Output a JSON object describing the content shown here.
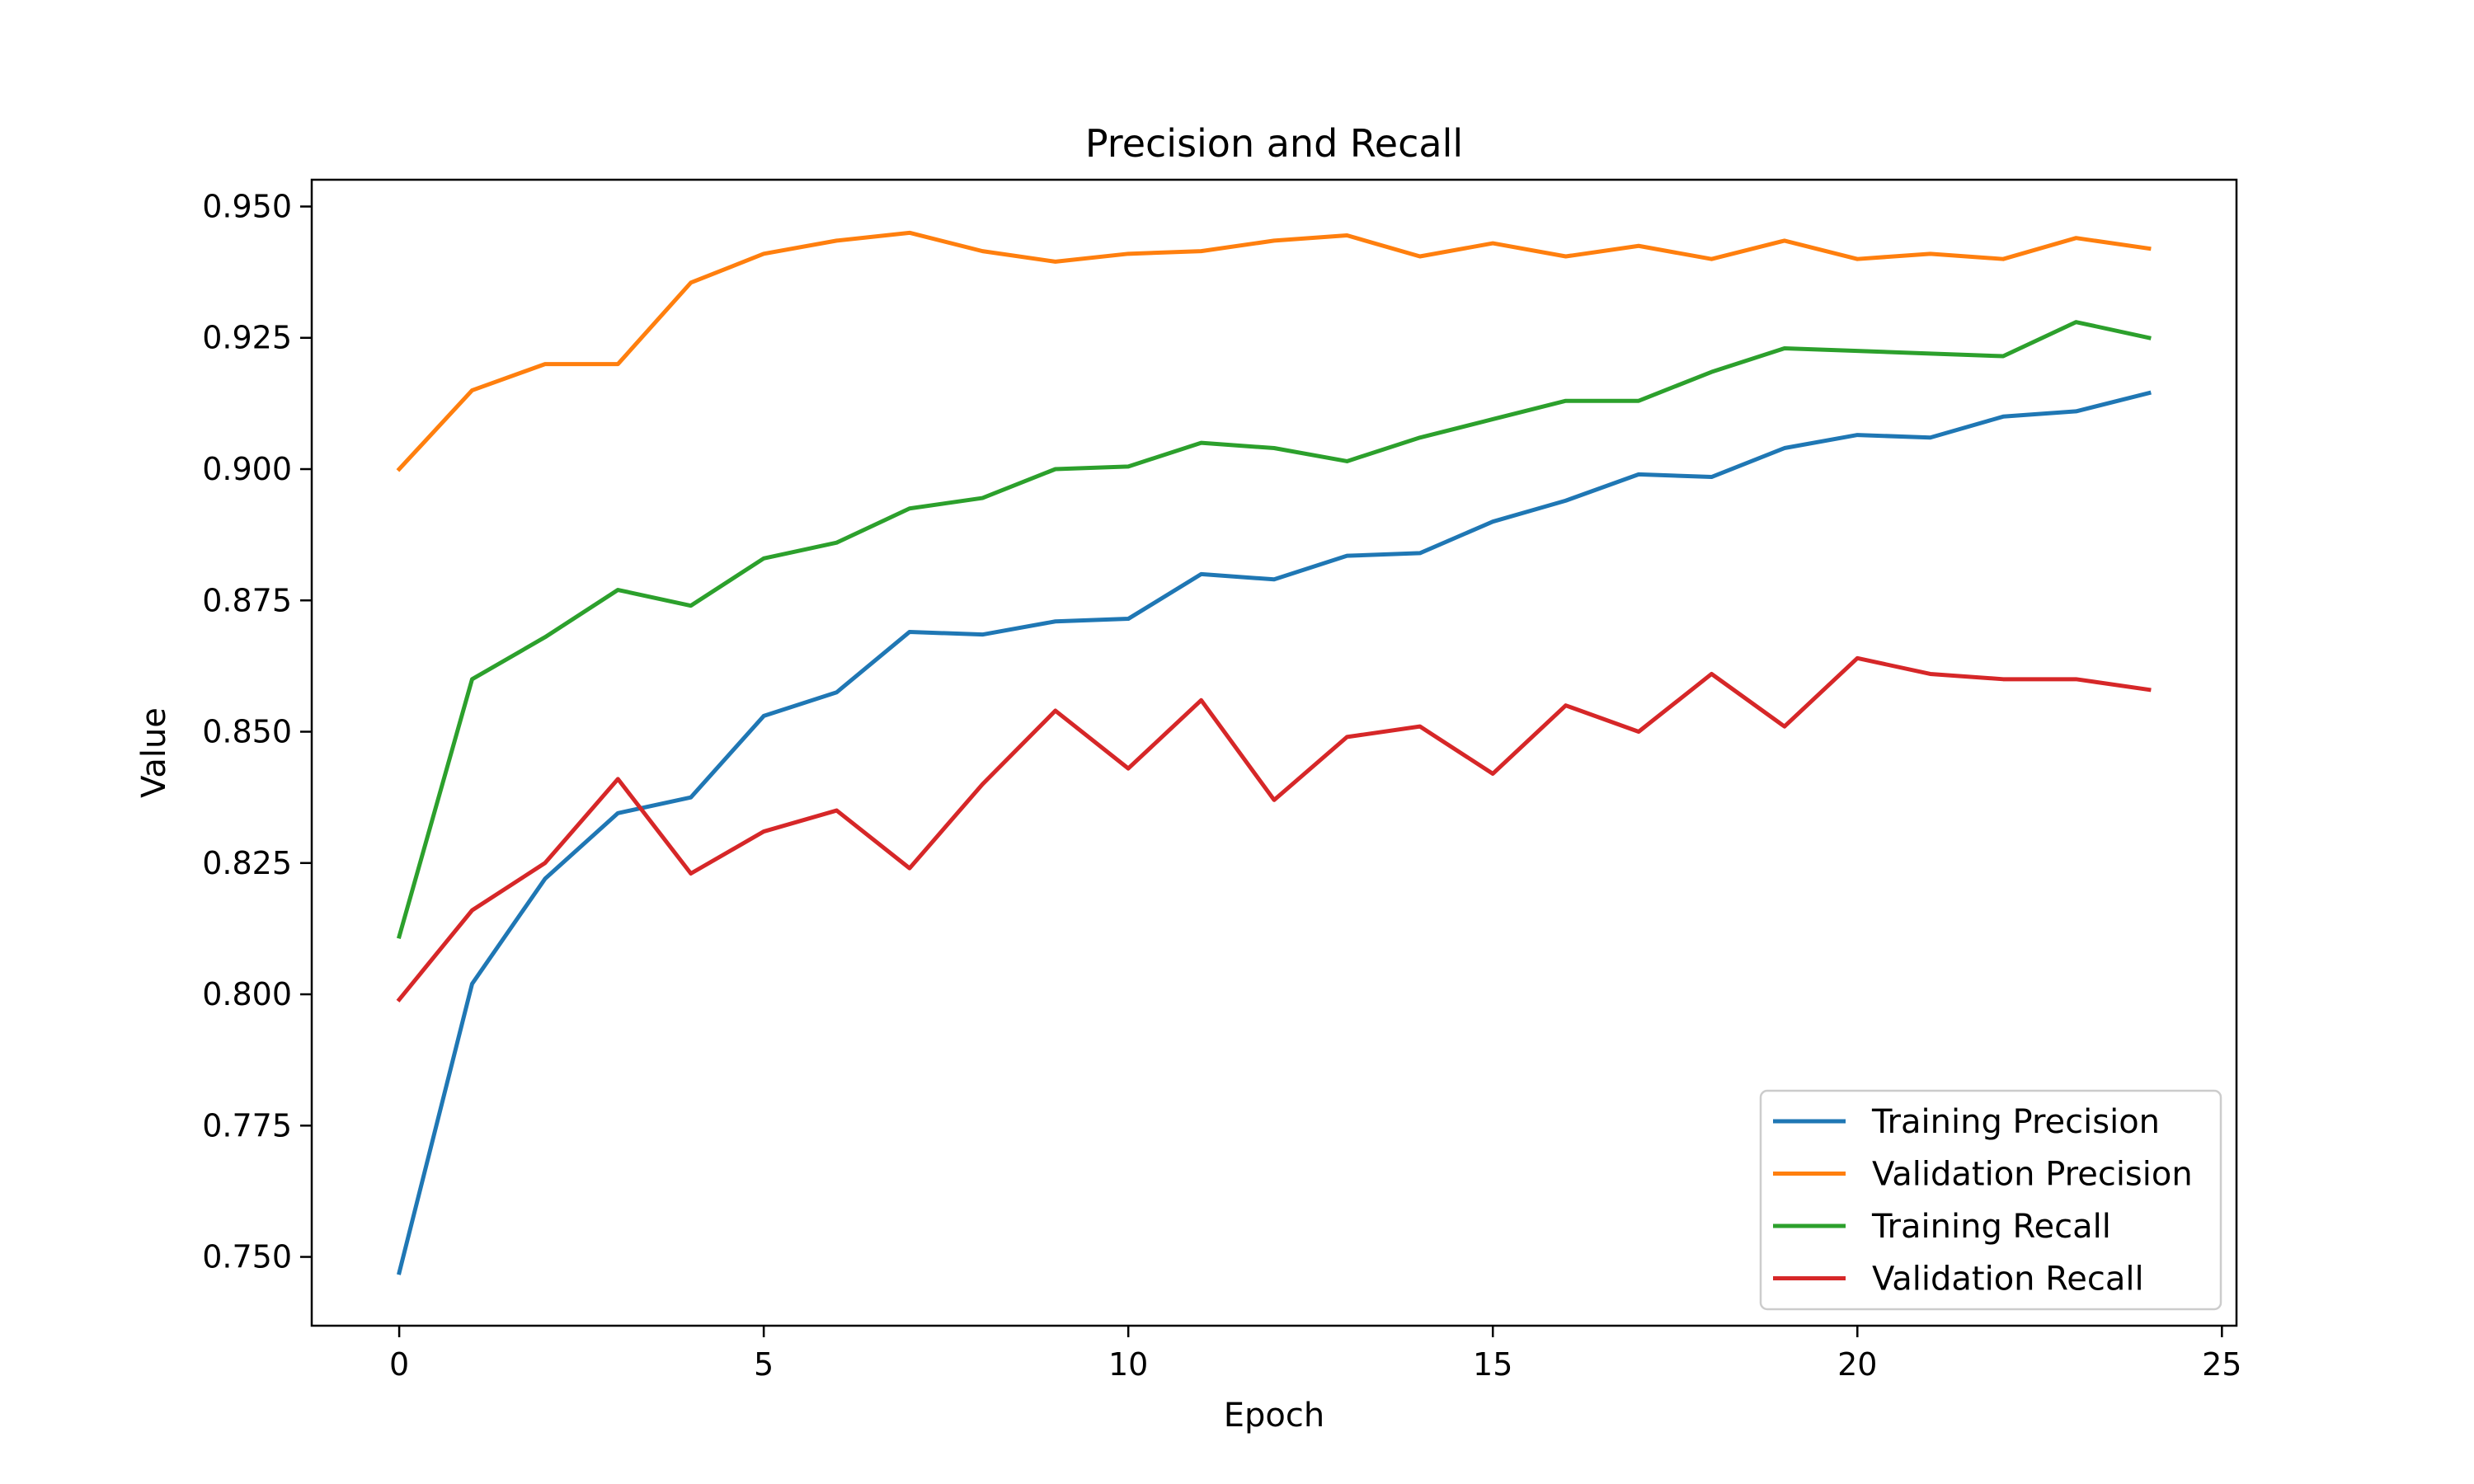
{
  "chart_data": {
    "type": "line",
    "title": "Precision and Recall",
    "xlabel": "Epoch",
    "ylabel": "Value",
    "xlim": [
      -1.2,
      25.2
    ],
    "ylim": [
      0.7369,
      0.9551
    ],
    "xticks": [
      0,
      5,
      10,
      15,
      20,
      25
    ],
    "xtick_labels": [
      "0",
      "5",
      "10",
      "15",
      "20",
      "25"
    ],
    "yticks": [
      0.75,
      0.775,
      0.8,
      0.825,
      0.85,
      0.875,
      0.9,
      0.925,
      0.95
    ],
    "ytick_labels": [
      "0.750",
      "0.775",
      "0.800",
      "0.825",
      "0.850",
      "0.875",
      "0.900",
      "0.925",
      "0.950"
    ],
    "grid": false,
    "legend_position": "lower-right",
    "x": [
      0,
      1,
      2,
      3,
      4,
      5,
      6,
      7,
      8,
      9,
      10,
      11,
      12,
      13,
      14,
      15,
      16,
      17,
      18,
      19,
      20,
      21,
      22,
      23,
      24
    ],
    "series": [
      {
        "name": "Training Precision",
        "color": "#1f77b4",
        "values": [
          0.747,
          0.802,
          0.822,
          0.8345,
          0.8375,
          0.853,
          0.8575,
          0.869,
          0.8685,
          0.871,
          0.8715,
          0.88,
          0.879,
          0.8835,
          0.884,
          0.89,
          0.894,
          0.899,
          0.8985,
          0.904,
          0.9065,
          0.906,
          0.91,
          0.911,
          0.9145
        ]
      },
      {
        "name": "Validation Precision",
        "color": "#ff7f0e",
        "values": [
          0.9,
          0.915,
          0.92,
          0.92,
          0.9355,
          0.941,
          0.9435,
          0.945,
          0.9415,
          0.9395,
          0.941,
          0.9415,
          0.9435,
          0.9445,
          0.9405,
          0.943,
          0.9405,
          0.9425,
          0.94,
          0.9435,
          0.94,
          0.941,
          0.94,
          0.944,
          0.942
        ]
      },
      {
        "name": "Training Recall",
        "color": "#2ca02c",
        "values": [
          0.811,
          0.86,
          0.868,
          0.877,
          0.874,
          0.883,
          0.886,
          0.8925,
          0.8945,
          0.9,
          0.9005,
          0.905,
          0.904,
          0.9015,
          0.906,
          0.9095,
          0.913,
          0.913,
          0.9185,
          0.923,
          0.9225,
          0.922,
          0.9215,
          0.928,
          0.925
        ]
      },
      {
        "name": "Validation Recall",
        "color": "#d62728",
        "values": [
          0.799,
          0.816,
          0.825,
          0.841,
          0.823,
          0.831,
          0.835,
          0.824,
          0.84,
          0.854,
          0.843,
          0.856,
          0.837,
          0.849,
          0.851,
          0.842,
          0.855,
          0.85,
          0.861,
          0.851,
          0.864,
          0.861,
          0.86,
          0.86,
          0.858
        ]
      }
    ]
  }
}
